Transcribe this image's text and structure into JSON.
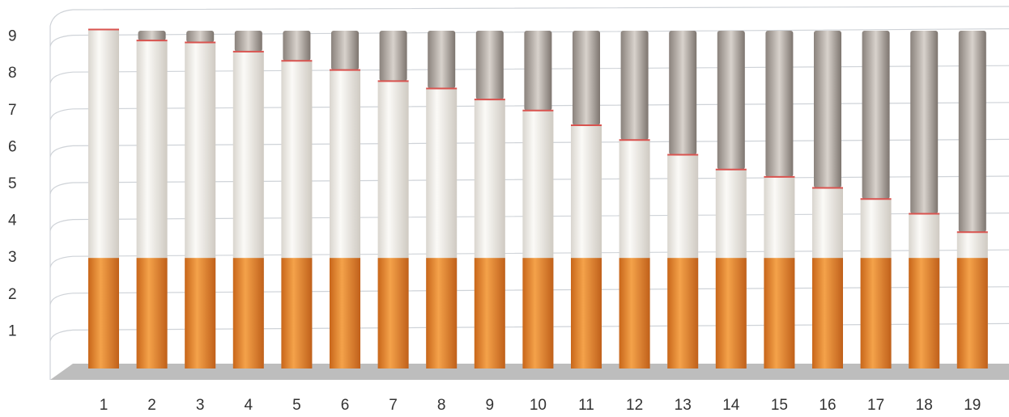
{
  "chart_data": {
    "type": "bar",
    "categories": [
      "1",
      "2",
      "3",
      "4",
      "5",
      "6",
      "7",
      "8",
      "9",
      "10",
      "11",
      "12",
      "13",
      "14",
      "15",
      "16",
      "17",
      "18",
      "19"
    ],
    "values": [
      9.2,
      8.9,
      8.85,
      8.6,
      8.35,
      8.1,
      7.8,
      7.6,
      7.3,
      7.0,
      6.6,
      6.2,
      5.8,
      5.4,
      5.2,
      4.9,
      4.6,
      4.2,
      3.7
    ],
    "filter": 3,
    "color": "#f4f1ec",
    "filter_color": "#e8862a",
    "ylim": [
      0,
      10
    ],
    "yticks": [
      1,
      2,
      3,
      4,
      5,
      6,
      7,
      8,
      9
    ],
    "grid": true
  }
}
